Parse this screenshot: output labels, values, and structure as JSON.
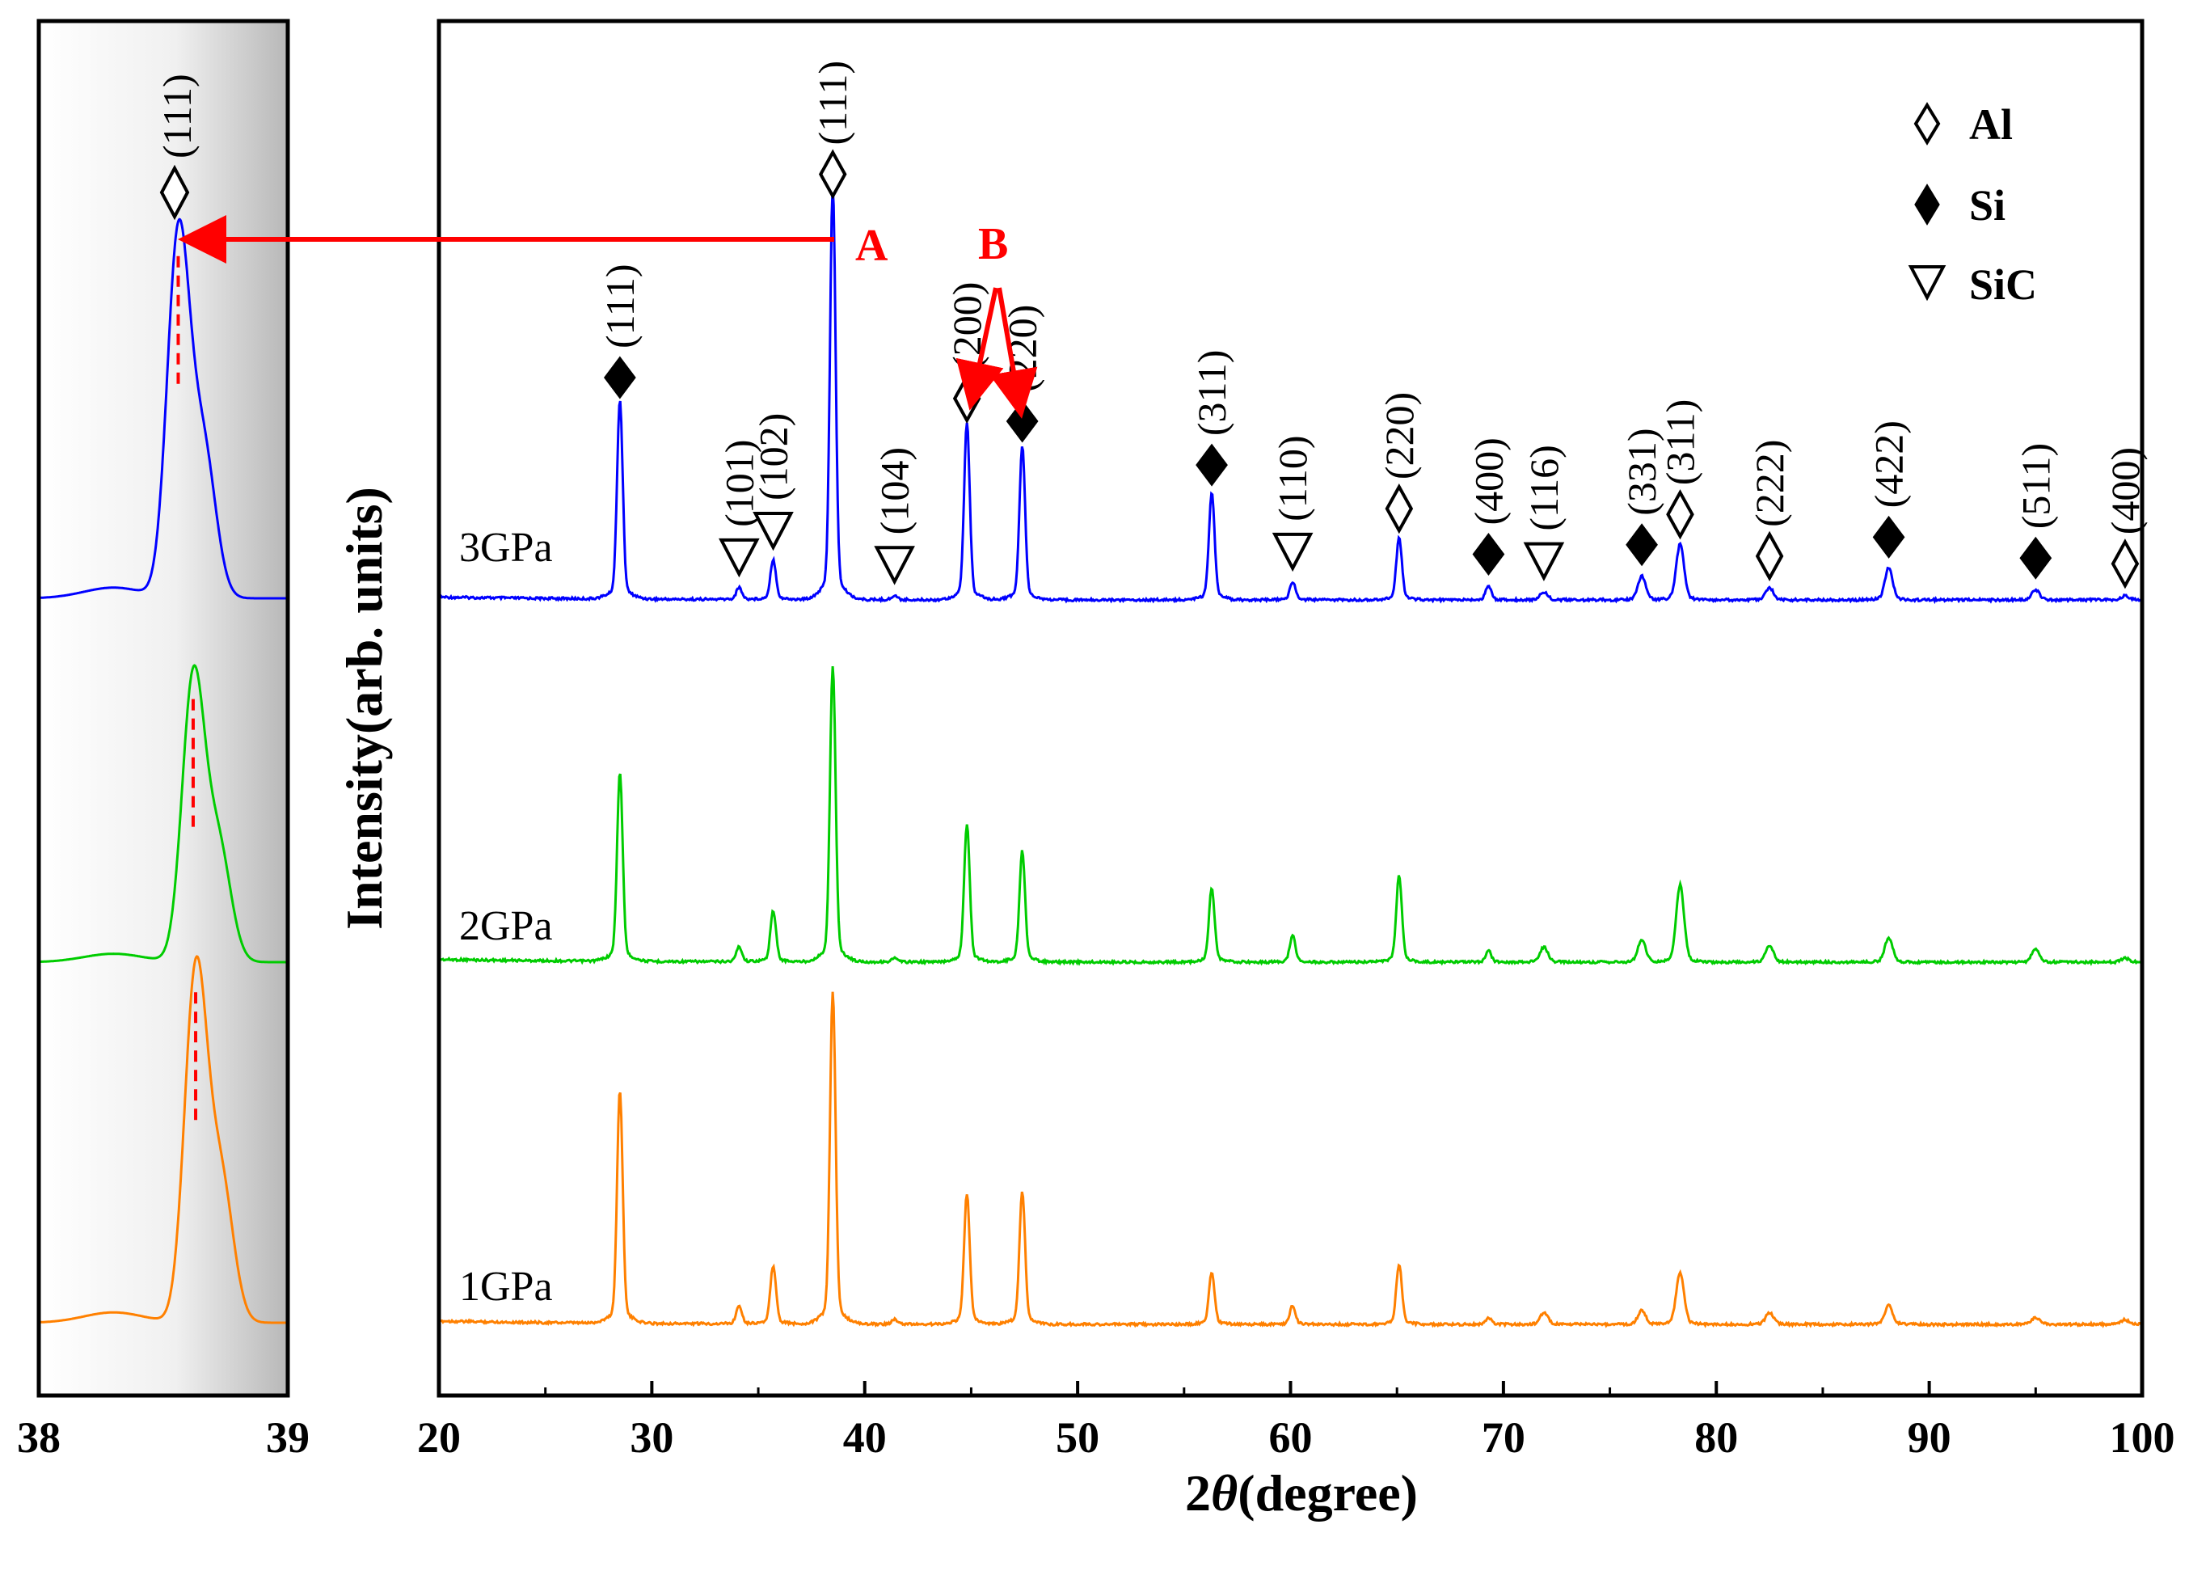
{
  "chart_data": [
    {
      "id": "main",
      "type": "line",
      "xlabel_prefix": "2",
      "xlabel_theta": "θ",
      "xlabel_suffix": "(degree)",
      "ylabel": "Intensity(arb. units)",
      "xlim": [
        20,
        100
      ],
      "xticks": [
        "20",
        "30",
        "40",
        "50",
        "60",
        "70",
        "80",
        "90",
        "100"
      ],
      "series": [
        {
          "name": "3GPa",
          "color": "#0000ff",
          "peaks": [
            {
              "x": 28.5,
              "h": 1.0
            },
            {
              "x": 34.1,
              "h": 0.06
            },
            {
              "x": 35.7,
              "h": 0.2
            },
            {
              "x": 38.5,
              "h": 2.07
            },
            {
              "x": 41.4,
              "h": 0.02
            },
            {
              "x": 44.8,
              "h": 0.89
            },
            {
              "x": 47.4,
              "h": 0.77
            },
            {
              "x": 56.3,
              "h": 0.54
            },
            {
              "x": 60.1,
              "h": 0.09
            },
            {
              "x": 65.1,
              "h": 0.31
            },
            {
              "x": 69.3,
              "h": 0.07
            },
            {
              "x": 71.9,
              "h": 0.04
            },
            {
              "x": 76.5,
              "h": 0.12
            },
            {
              "x": 78.3,
              "h": 0.28
            },
            {
              "x": 82.5,
              "h": 0.06
            },
            {
              "x": 88.1,
              "h": 0.16
            },
            {
              "x": 95.0,
              "h": 0.05
            },
            {
              "x": 99.2,
              "h": 0.02
            }
          ]
        },
        {
          "name": "2GPa",
          "color": "#00cc00",
          "peaks": [
            {
              "x": 28.5,
              "h": 1.0
            },
            {
              "x": 34.1,
              "h": 0.08
            },
            {
              "x": 35.7,
              "h": 0.27
            },
            {
              "x": 38.5,
              "h": 1.57
            },
            {
              "x": 41.4,
              "h": 0.02
            },
            {
              "x": 44.8,
              "h": 0.73
            },
            {
              "x": 47.4,
              "h": 0.59
            },
            {
              "x": 56.3,
              "h": 0.39
            },
            {
              "x": 60.1,
              "h": 0.14
            },
            {
              "x": 65.1,
              "h": 0.46
            },
            {
              "x": 69.3,
              "h": 0.06
            },
            {
              "x": 71.9,
              "h": 0.08
            },
            {
              "x": 76.5,
              "h": 0.12
            },
            {
              "x": 78.3,
              "h": 0.41
            },
            {
              "x": 82.5,
              "h": 0.09
            },
            {
              "x": 88.1,
              "h": 0.13
            },
            {
              "x": 95.0,
              "h": 0.07
            },
            {
              "x": 99.2,
              "h": 0.02
            }
          ]
        },
        {
          "name": "1GPa",
          "color": "#ff8000",
          "peaks": [
            {
              "x": 28.5,
              "h": 1.0
            },
            {
              "x": 34.1,
              "h": 0.08
            },
            {
              "x": 35.7,
              "h": 0.25
            },
            {
              "x": 38.5,
              "h": 1.42
            },
            {
              "x": 41.4,
              "h": 0.02
            },
            {
              "x": 44.8,
              "h": 0.56
            },
            {
              "x": 47.4,
              "h": 0.57
            },
            {
              "x": 56.3,
              "h": 0.22
            },
            {
              "x": 60.1,
              "h": 0.08
            },
            {
              "x": 65.1,
              "h": 0.26
            },
            {
              "x": 69.3,
              "h": 0.03
            },
            {
              "x": 71.9,
              "h": 0.05
            },
            {
              "x": 76.5,
              "h": 0.06
            },
            {
              "x": 78.3,
              "h": 0.22
            },
            {
              "x": 82.5,
              "h": 0.05
            },
            {
              "x": 88.1,
              "h": 0.08
            },
            {
              "x": 95.0,
              "h": 0.03
            },
            {
              "x": 99.2,
              "h": 0.02
            }
          ]
        }
      ],
      "peak_labels": [
        {
          "x": 28.5,
          "phase": "Si",
          "hkl": "(111)"
        },
        {
          "x": 34.1,
          "phase": "SiC",
          "hkl": "(101)"
        },
        {
          "x": 35.7,
          "phase": "SiC",
          "hkl": "(102)"
        },
        {
          "x": 38.5,
          "phase": "Al",
          "hkl": "(111)"
        },
        {
          "x": 41.4,
          "phase": "SiC",
          "hkl": "(104)"
        },
        {
          "x": 44.8,
          "phase": "Al",
          "hkl": "(200)"
        },
        {
          "x": 47.4,
          "phase": "Si",
          "hkl": "(220)"
        },
        {
          "x": 56.3,
          "phase": "Si",
          "hkl": "(311)"
        },
        {
          "x": 60.1,
          "phase": "SiC",
          "hkl": "(110)"
        },
        {
          "x": 65.1,
          "phase": "Al",
          "hkl": "(220)"
        },
        {
          "x": 69.3,
          "phase": "Si",
          "hkl": "(400)"
        },
        {
          "x": 71.9,
          "phase": "SiC",
          "hkl": "(116)"
        },
        {
          "x": 76.5,
          "phase": "Si",
          "hkl": "(331)"
        },
        {
          "x": 78.3,
          "phase": "Al",
          "hkl": "(311)"
        },
        {
          "x": 82.5,
          "phase": "Al",
          "hkl": "(222)"
        },
        {
          "x": 88.1,
          "phase": "Si",
          "hkl": "(422)"
        },
        {
          "x": 95.0,
          "phase": "Si",
          "hkl": "(511)"
        },
        {
          "x": 99.2,
          "phase": "Al",
          "hkl": "(400)"
        }
      ],
      "legend": [
        {
          "symbol": "open-diamond",
          "label": "Al"
        },
        {
          "symbol": "filled-diamond",
          "label": "Si"
        },
        {
          "symbol": "open-triangle",
          "label": "SiC"
        }
      ],
      "annotations": {
        "A": "A",
        "B": "B"
      }
    },
    {
      "id": "inset",
      "type": "line",
      "title": "(111)",
      "xlim": [
        38,
        39
      ],
      "xticks": [
        "38",
        "39"
      ],
      "series": [
        {
          "name": "3GPa",
          "color": "#0000ff",
          "peak_x": 38.56
        },
        {
          "name": "2GPa",
          "color": "#00cc00",
          "peak_x": 38.62
        },
        {
          "name": "1GPa",
          "color": "#ff8000",
          "peak_x": 38.63
        }
      ]
    }
  ]
}
